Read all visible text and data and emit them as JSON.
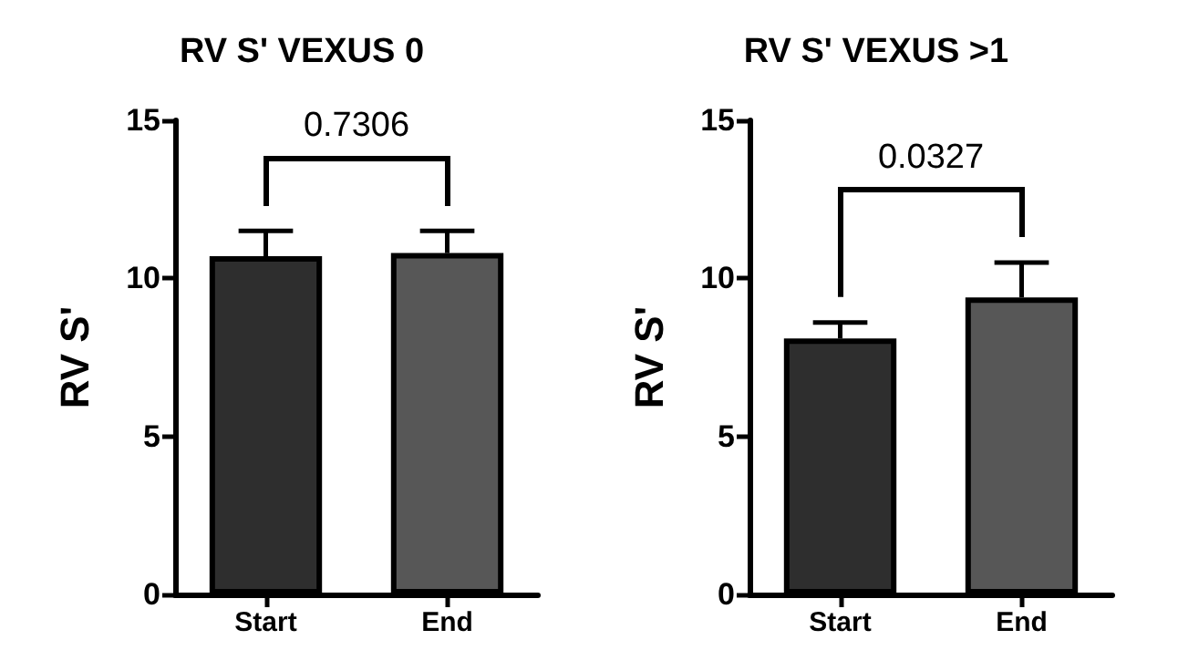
{
  "chart_data": [
    {
      "type": "bar",
      "title": "RV S' VEXUS 0",
      "ylabel": "RV S'",
      "categories": [
        "Start",
        "End"
      ],
      "values": [
        10.7,
        10.8
      ],
      "colors": [
        "#2e2e2e",
        "#575757"
      ],
      "errors": [
        [
          10.7,
          11.5
        ],
        [
          10.8,
          11.5
        ]
      ],
      "ylim": [
        0,
        15
      ],
      "yticks": [
        0,
        5,
        10,
        15
      ],
      "annotations": [
        "0.7306"
      ]
    },
    {
      "type": "bar",
      "title": "RV S' VEXUS >1",
      "ylabel": "RV S'",
      "categories": [
        "Start",
        "End"
      ],
      "values": [
        8.1,
        9.4
      ],
      "colors": [
        "#2e2e2e",
        "#575757"
      ],
      "errors": [
        [
          8.1,
          8.6
        ],
        [
          9.4,
          10.5
        ]
      ],
      "ylim": [
        0,
        15
      ],
      "yticks": [
        0,
        5,
        10,
        15
      ],
      "annotations": [
        "0.0327"
      ]
    }
  ]
}
